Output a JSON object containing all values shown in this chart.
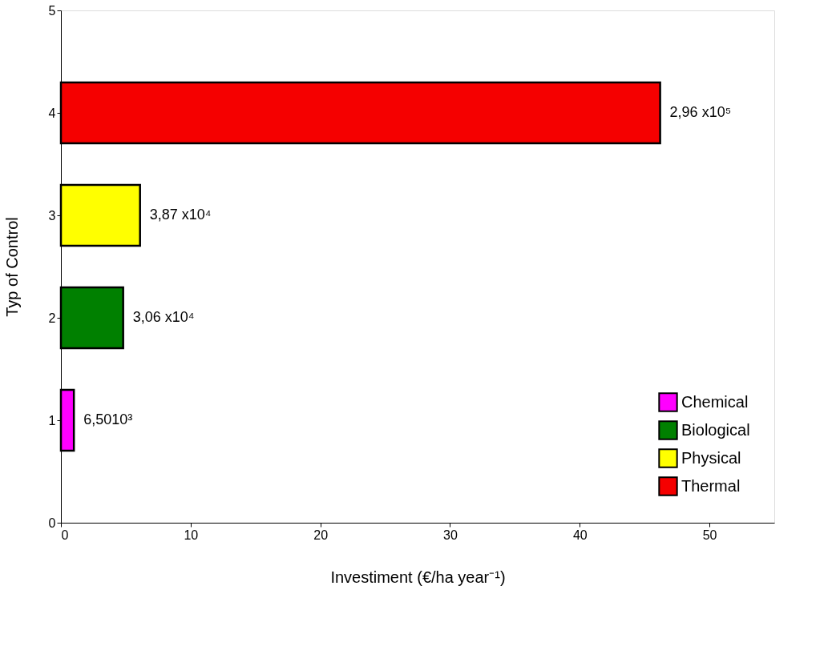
{
  "chart_data": {
    "type": "bar",
    "orientation": "horizontal",
    "x": [
      1,
      2,
      3,
      4
    ],
    "series": [
      {
        "name": "Chemical",
        "color": "#ff00ff",
        "values": [
          1.0,
          null,
          null,
          null
        ]
      },
      {
        "name": "Biological",
        "color": "#008000",
        "values": [
          null,
          4.8,
          null,
          null
        ]
      },
      {
        "name": "Physical",
        "color": "#ffff00",
        "values": [
          null,
          null,
          6.1,
          null
        ]
      },
      {
        "name": "Thermal",
        "color": "#f50000",
        "values": [
          null,
          null,
          null,
          46.2
        ]
      }
    ],
    "annotations": [
      {
        "text": "6,5010³",
        "x": 1.0,
        "y": 1
      },
      {
        "text": "3,06 x10⁴",
        "x": 4.8,
        "y": 2
      },
      {
        "text": "3,87 x10⁴",
        "x": 6.1,
        "y": 3
      },
      {
        "text": "2,96 x10⁵",
        "x": 46.2,
        "y": 4
      }
    ],
    "xlabel": "Investiment (€/ha year⁻¹)",
    "ylabel": "Typ of Control",
    "xlim": [
      0,
      55
    ],
    "xticks": [
      0,
      10,
      20,
      30,
      40,
      50
    ],
    "ylim": [
      0,
      5
    ],
    "yticks": [
      0,
      1,
      2,
      3,
      4,
      5
    ],
    "legend": "bottom right",
    "grid": false
  }
}
